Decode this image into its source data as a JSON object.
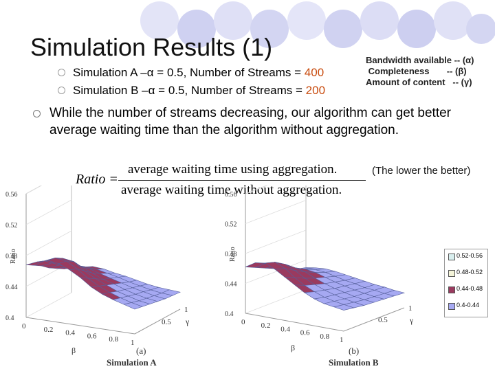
{
  "slide": {
    "title": "Simulation Results (1)",
    "sub_bullets": [
      {
        "prefix": "Simulation A –α = 0.5, Number of Streams = ",
        "value": "400"
      },
      {
        "prefix": "Simulation B –α = 0.5, Number of Streams = ",
        "value": "200"
      }
    ],
    "main_bullet": "While the number of streams decreasing, our algorithm can get better average waiting time than the algorithm without aggregation.",
    "definitions": [
      "Bandwidth available -- (α)",
      " Completeness       -- (β)",
      "Amount of content   -- (γ)"
    ],
    "lower_note": "(The lower the better)",
    "formula": {
      "lhs": "Ratio =",
      "numerator": "average waiting time using aggregation.",
      "denominator": "average waiting time without aggregation."
    },
    "accent_color": "#c84a0c"
  },
  "charts": [
    {
      "letter": "(a)",
      "caption": "Simulation A",
      "axis_title_z": "Ratio",
      "axis_title_x": "β",
      "axis_title_y": "γ",
      "z_ticks": [
        "0.56",
        "0.52",
        "0.48",
        "0.44",
        "0.4"
      ],
      "x_ticks": [
        "0",
        "0.2",
        "0.4",
        "0.6",
        "0.8",
        "1"
      ],
      "y_ticks": [
        "0.5",
        "1"
      ]
    },
    {
      "letter": "(b)",
      "caption": "Simulation B",
      "axis_title_z": "Ratio",
      "axis_title_x": "β",
      "axis_title_y": "γ",
      "z_ticks": [
        "0.56",
        "0.52",
        "0.48",
        "0.44",
        "0.4"
      ],
      "x_ticks": [
        "0",
        "0.2",
        "0.4",
        "0.6",
        "0.8",
        "1"
      ],
      "y_ticks": [
        "0.5",
        "1"
      ]
    }
  ],
  "chart_data": [
    {
      "type": "heatmap",
      "subtype": "3d-surface",
      "title": "Simulation A",
      "xlabel": "β",
      "ylabel": "γ",
      "zlabel": "Ratio",
      "zlim": [
        0.4,
        0.56
      ],
      "z": [
        [
          0.468,
          0.474,
          0.478,
          0.476,
          0.47,
          0.462,
          0.452,
          0.445,
          0.44,
          0.436,
          0.432
        ],
        [
          0.462,
          0.47,
          0.476,
          0.474,
          0.466,
          0.456,
          0.448,
          0.442,
          0.437,
          0.433,
          0.43
        ],
        [
          0.456,
          0.462,
          0.47,
          0.468,
          0.458,
          0.45,
          0.444,
          0.438,
          0.434,
          0.43,
          0.428
        ],
        [
          0.448,
          0.454,
          0.46,
          0.456,
          0.45,
          0.444,
          0.44,
          0.435,
          0.431,
          0.428,
          0.426
        ],
        [
          0.442,
          0.446,
          0.45,
          0.448,
          0.444,
          0.44,
          0.436,
          0.432,
          0.429,
          0.426,
          0.424
        ],
        [
          0.436,
          0.44,
          0.443,
          0.442,
          0.439,
          0.436,
          0.432,
          0.429,
          0.426,
          0.424,
          0.423
        ],
        [
          0.432,
          0.435,
          0.438,
          0.437,
          0.434,
          0.432,
          0.429,
          0.426,
          0.424,
          0.423,
          0.422
        ]
      ],
      "legend": [
        "0.52-0.56",
        "0.48-0.52",
        "0.44-0.48",
        "0.4-0.44"
      ]
    },
    {
      "type": "heatmap",
      "subtype": "3d-surface",
      "title": "Simulation B",
      "xlabel": "β",
      "ylabel": "γ",
      "zlabel": "Ratio",
      "zlim": [
        0.4,
        0.56
      ],
      "z": [
        [
          0.462,
          0.47,
          0.472,
          0.466,
          0.458,
          0.45,
          0.442,
          0.436,
          0.432,
          0.43,
          0.428
        ],
        [
          0.456,
          0.464,
          0.468,
          0.462,
          0.452,
          0.444,
          0.438,
          0.433,
          0.43,
          0.428,
          0.426
        ],
        [
          0.45,
          0.456,
          0.46,
          0.454,
          0.446,
          0.44,
          0.435,
          0.431,
          0.428,
          0.426,
          0.424
        ],
        [
          0.444,
          0.448,
          0.45,
          0.447,
          0.441,
          0.436,
          0.432,
          0.429,
          0.426,
          0.424,
          0.423
        ],
        [
          0.438,
          0.441,
          0.443,
          0.441,
          0.437,
          0.433,
          0.43,
          0.427,
          0.425,
          0.423,
          0.422
        ],
        [
          0.433,
          0.436,
          0.437,
          0.436,
          0.433,
          0.43,
          0.428,
          0.425,
          0.424,
          0.422,
          0.421
        ],
        [
          0.43,
          0.432,
          0.433,
          0.432,
          0.43,
          0.428,
          0.426,
          0.424,
          0.423,
          0.421,
          0.42
        ]
      ],
      "legend": [
        "0.52-0.56",
        "0.48-0.52",
        "0.44-0.48",
        "0.4-0.44"
      ]
    }
  ],
  "legend": {
    "items": [
      {
        "label": "0.52-0.56",
        "color": "#d9efef"
      },
      {
        "label": "0.48-0.52",
        "color": "#f4f4d9"
      },
      {
        "label": "0.44-0.48",
        "color": "#9a3a5f"
      },
      {
        "label": "0.4-0.44",
        "color": "#a6a9f2"
      }
    ]
  },
  "colors": {
    "decor_circle": "#c9cbee",
    "decor_ring": "#eef0fb",
    "surface_low": "#a6a9f2",
    "surface_high": "#9a3a5f",
    "wire": "#555f9a"
  }
}
